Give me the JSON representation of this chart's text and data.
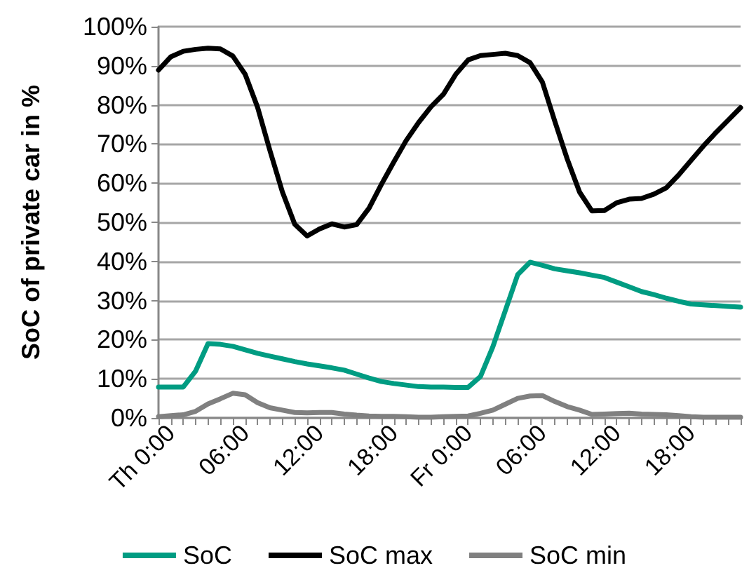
{
  "chart_data": {
    "type": "line",
    "ylabel": "SoC of private car in %",
    "categories": [
      null,
      "Th 0:00",
      null,
      null,
      null,
      null,
      null,
      "06:00",
      null,
      null,
      null,
      null,
      null,
      "12:00",
      null,
      null,
      null,
      null,
      null,
      "18:00",
      null,
      null,
      null,
      null,
      null,
      "Fr 0:00",
      null,
      null,
      null,
      null,
      null,
      "06:00",
      null,
      null,
      null,
      null,
      null,
      "12:00",
      null,
      null,
      null,
      null,
      null,
      "18:00",
      null,
      null,
      null,
      null
    ],
    "ylim": [
      0,
      100
    ],
    "yticks": [
      {
        "value": 0,
        "label": "0%"
      },
      {
        "value": 10,
        "label": "10%"
      },
      {
        "value": 20,
        "label": "20%"
      },
      {
        "value": 30,
        "label": "30%"
      },
      {
        "value": 40,
        "label": "40%"
      },
      {
        "value": 50,
        "label": "50%"
      },
      {
        "value": 60,
        "label": "60%"
      },
      {
        "value": 70,
        "label": "70%"
      },
      {
        "value": 80,
        "label": "80%"
      },
      {
        "value": 90,
        "label": "90%"
      },
      {
        "value": 100,
        "label": "100%"
      }
    ],
    "grid": "y",
    "legend": "bottom",
    "marker": "none",
    "line_style": "solid",
    "series": [
      {
        "name": "SoC",
        "color": "#009c82",
        "values": [
          7.9,
          7.9,
          7.9,
          12.0,
          19.0,
          18.8,
          18.3,
          17.4,
          16.5,
          15.8,
          15.1,
          14.4,
          13.8,
          13.3,
          12.8,
          12.2,
          11.2,
          10.2,
          9.3,
          8.8,
          8.4,
          8.0,
          7.9,
          7.9,
          7.8,
          7.8,
          10.6,
          18.2,
          27.4,
          36.6,
          39.8,
          39.0,
          38.1,
          37.6,
          37.1,
          36.5,
          35.9,
          34.7,
          33.5,
          32.3,
          31.5,
          30.6,
          29.8,
          29.1,
          28.9,
          28.7,
          28.5,
          28.3
        ]
      },
      {
        "name": "SoC max",
        "color": "#000000",
        "values": [
          88.9,
          92.3,
          93.7,
          94.2,
          94.5,
          94.3,
          92.5,
          87.8,
          79.4,
          68.3,
          57.8,
          49.5,
          46.5,
          48.3,
          49.6,
          48.8,
          49.4,
          53.6,
          59.7,
          65.4,
          70.9,
          75.5,
          79.5,
          82.7,
          87.8,
          91.5,
          92.6,
          92.9,
          93.2,
          92.6,
          90.8,
          85.8,
          75.8,
          66.2,
          57.7,
          52.9,
          53.0,
          55.0,
          55.9,
          56.1,
          57.2,
          58.8,
          62.1,
          65.8,
          69.5,
          72.9,
          76.1,
          79.3
        ]
      },
      {
        "name": "SoC min",
        "color": "#808080",
        "values": [
          0.3,
          0.6,
          0.8,
          1.7,
          3.6,
          4.9,
          6.3,
          5.9,
          3.9,
          2.6,
          2.0,
          1.4,
          1.3,
          1.4,
          1.4,
          1.0,
          0.7,
          0.5,
          0.4,
          0.4,
          0.3,
          0.2,
          0.2,
          0.3,
          0.4,
          0.5,
          1.2,
          2.0,
          3.5,
          5.0,
          5.6,
          5.7,
          4.2,
          2.9,
          2.0,
          0.9,
          1.0,
          1.1,
          1.2,
          1.0,
          0.9,
          0.8,
          0.6,
          0.3,
          0.2,
          0.2,
          0.2,
          0.2
        ]
      }
    ]
  }
}
